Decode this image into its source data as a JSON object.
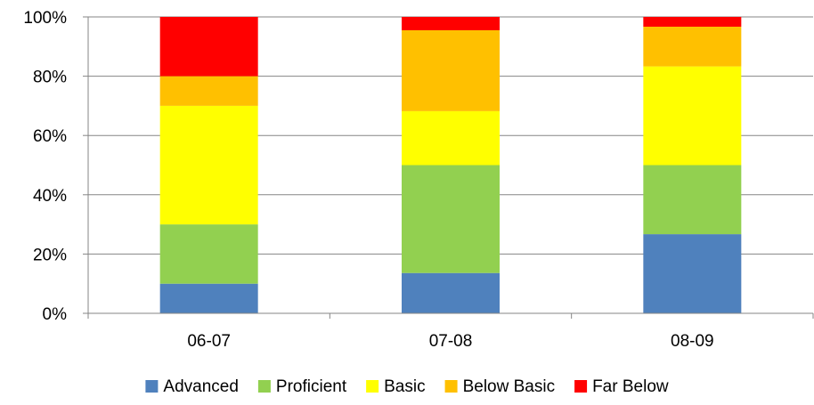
{
  "chart_data": {
    "type": "bar",
    "stacked": true,
    "percent_stacked": true,
    "categories": [
      "06-07",
      "07-08",
      "08-09"
    ],
    "series": [
      {
        "name": "Advanced",
        "color": "#4F81BD",
        "values": [
          10,
          13.6,
          26.7
        ]
      },
      {
        "name": "Proficient",
        "color": "#92D050",
        "values": [
          20,
          36.4,
          23.3
        ]
      },
      {
        "name": "Basic",
        "color": "#FFFF00",
        "values": [
          40,
          18.2,
          33.3
        ]
      },
      {
        "name": "Below Basic",
        "color": "#FFC000",
        "values": [
          10,
          27.3,
          13.4
        ]
      },
      {
        "name": "Far Below",
        "color": "#FF0000",
        "values": [
          20,
          4.5,
          3.3
        ]
      }
    ],
    "ylim": [
      0,
      100
    ],
    "yticks": [
      "0%",
      "20%",
      "40%",
      "60%",
      "80%",
      "100%"
    ],
    "ytick_values": [
      0,
      20,
      40,
      60,
      80,
      100
    ],
    "grid": true,
    "legend_position": "bottom",
    "title": "",
    "xlabel": "",
    "ylabel": ""
  }
}
